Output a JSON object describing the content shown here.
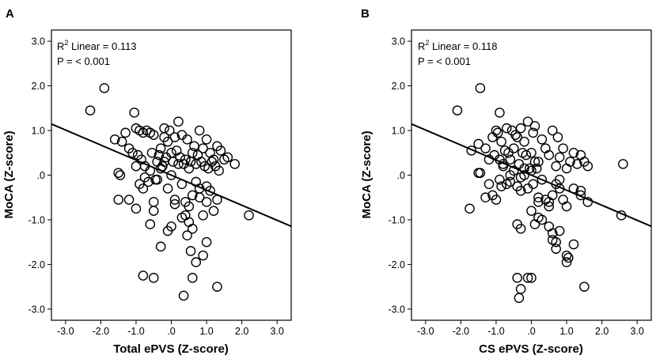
{
  "chart_data": [
    {
      "type": "scatter",
      "panel_label": "A",
      "xlabel": "Total ePVS (Z-score)",
      "ylabel": "MoCA (Z-score)",
      "xlim": [
        -3.4,
        3.4
      ],
      "ylim": [
        -3.25,
        3.25
      ],
      "xticks": [
        -3,
        -2,
        -1,
        0,
        1,
        2,
        3
      ],
      "yticks": [
        3,
        2,
        1,
        0,
        -1,
        -2,
        -3
      ],
      "xtick_labels": [
        "-3.0",
        "-2.0",
        "-1.0",
        ".0",
        "1.0",
        "2.0",
        "3.0"
      ],
      "ytick_labels": [
        "3.0",
        "2.0",
        "1.0",
        ".0",
        "-1.0",
        "-2.0",
        "-3.0"
      ],
      "annotation": {
        "r2_label": "R",
        "r2_sup": "2",
        "r2_text": " Linear = 0.113",
        "p_text": "P = < 0.001"
      },
      "fit_line": {
        "slope": -0.337,
        "intercept": 0.0
      },
      "x": [
        -2.3,
        -1.9,
        -1.6,
        -1.5,
        -1.4,
        -1.3,
        -1.2,
        -1.1,
        -1.05,
        -1.0,
        -0.95,
        -0.9,
        -0.85,
        -0.8,
        -0.75,
        -0.7,
        -0.65,
        -0.6,
        -0.55,
        -0.5,
        -0.45,
        -0.4,
        -0.35,
        -0.3,
        -0.25,
        -0.2,
        -0.15,
        -0.1,
        -0.05,
        0.0,
        0.05,
        0.1,
        0.15,
        0.2,
        0.25,
        0.3,
        0.35,
        0.4,
        0.45,
        0.5,
        0.55,
        0.6,
        0.65,
        0.7,
        0.75,
        0.8,
        0.85,
        0.9,
        0.95,
        1.0,
        1.05,
        1.1,
        1.15,
        1.2,
        1.25,
        1.3,
        1.35,
        1.4,
        1.5,
        1.6,
        1.8,
        -1.5,
        -1.45,
        -1.2,
        -1.0,
        -0.9,
        -0.8,
        -0.75,
        -0.6,
        -0.5,
        -0.4,
        -0.3,
        -0.2,
        -0.1,
        0.0,
        0.1,
        0.2,
        0.3,
        0.4,
        0.5,
        0.6,
        0.7,
        0.8,
        0.9,
        1.0,
        1.1,
        -0.6,
        -0.5,
        -0.1,
        0.1,
        0.4,
        0.5,
        0.6,
        0.8,
        1.0,
        1.2,
        1.3,
        -0.8,
        -0.5,
        -0.3,
        0.0,
        0.3,
        0.45,
        0.55,
        0.7,
        0.9,
        1.0,
        1.3,
        2.2,
        -1.0,
        -0.2,
        0.35,
        0.6
      ],
      "y": [
        1.45,
        1.95,
        0.8,
        -0.55,
        0.75,
        0.95,
        0.6,
        0.5,
        1.4,
        1.05,
        0.45,
        1.0,
        0.35,
        0.95,
        0.2,
        1.0,
        -0.15,
        0.95,
        0.5,
        0.9,
        -0.1,
        0.3,
        0.45,
        0.6,
        0.2,
        1.05,
        0.4,
        0.75,
        1.0,
        0.5,
        0.3,
        0.85,
        0.55,
        1.2,
        0.4,
        0.9,
        0.25,
        0.35,
        0.8,
        0.15,
        0.3,
        0.5,
        0.65,
        0.25,
        0.45,
        1.0,
        0.3,
        0.6,
        0.2,
        0.8,
        0.15,
        0.5,
        0.3,
        0.35,
        0.2,
        0.65,
        0.1,
        0.55,
        0.35,
        0.4,
        0.25,
        0.05,
        0.0,
        -0.55,
        -0.75,
        -0.2,
        -0.3,
        -0.05,
        0.1,
        -0.6,
        -0.1,
        0.15,
        0.3,
        -0.3,
        0.0,
        -0.55,
        0.25,
        -0.2,
        -0.6,
        -0.7,
        -0.45,
        -0.15,
        -0.5,
        -0.9,
        -0.25,
        -0.35,
        -1.1,
        -0.8,
        -1.25,
        -0.65,
        -0.9,
        -1.05,
        -1.2,
        -0.3,
        -0.6,
        -0.8,
        -0.55,
        -2.25,
        -2.3,
        -1.6,
        -1.15,
        -0.95,
        -1.35,
        -1.7,
        -1.95,
        -1.8,
        -1.5,
        -2.5,
        -0.9,
        0.2,
        0.85,
        -2.7,
        -2.3
      ]
    },
    {
      "type": "scatter",
      "panel_label": "B",
      "xlabel": "CS ePVS (Z-score)",
      "ylabel": "MoCA (Z-score)",
      "xlim": [
        -3.4,
        3.4
      ],
      "ylim": [
        -3.25,
        3.25
      ],
      "xticks": [
        -3,
        -2,
        -1,
        0,
        1,
        2,
        3
      ],
      "yticks": [
        3,
        2,
        1,
        0,
        -1,
        -2,
        -3
      ],
      "xtick_labels": [
        "-3.0",
        "-2.0",
        "-1.0",
        ".0",
        "1.0",
        "2.0",
        "3.0"
      ],
      "ytick_labels": [
        "3.0",
        "2.0",
        "1.0",
        ".0",
        "-1.0",
        "-2.0",
        "-3.0"
      ],
      "annotation": {
        "r2_label": "R",
        "r2_sup": "2",
        "r2_text": " Linear = 0.118",
        "p_text": "P = < 0.001"
      },
      "fit_line": {
        "slope": -0.337,
        "intercept": 0.0
      },
      "x": [
        -2.1,
        -1.45,
        -1.7,
        -1.5,
        -1.3,
        -1.2,
        -1.1,
        -1.05,
        -1.0,
        -0.95,
        -0.9,
        -0.85,
        -0.8,
        -0.75,
        -0.7,
        -0.65,
        -0.6,
        -0.55,
        -0.5,
        -0.45,
        -0.4,
        -0.35,
        -0.3,
        -0.25,
        -0.2,
        -0.15,
        -0.1,
        -0.05,
        0.0,
        0.05,
        0.1,
        0.2,
        0.3,
        0.4,
        0.5,
        0.6,
        0.7,
        0.75,
        0.8,
        0.9,
        1.0,
        1.1,
        1.2,
        1.3,
        1.4,
        1.5,
        1.6,
        2.6,
        -1.5,
        -1.45,
        -1.3,
        -1.0,
        -0.9,
        -0.8,
        -0.6,
        -0.5,
        -0.4,
        -0.3,
        -0.2,
        -0.1,
        0.0,
        0.05,
        0.1,
        0.15,
        0.2,
        0.3,
        0.5,
        0.6,
        0.7,
        0.8,
        0.9,
        1.2,
        1.4,
        1.6,
        -1.75,
        -1.2,
        -0.9,
        -0.6,
        -0.3,
        -0.2,
        0.0,
        0.2,
        0.3,
        0.5,
        0.8,
        1.0,
        1.4,
        2.55,
        -0.7,
        -0.4,
        -0.3,
        0.2,
        0.4,
        0.6,
        0.7,
        0.8,
        1.0,
        1.2,
        -0.4,
        -0.3,
        -0.1,
        0.0,
        0.1,
        0.6,
        0.7,
        1.0,
        1.05,
        1.5,
        -0.35,
        -0.85,
        -1.1,
        0.5
      ],
      "y": [
        1.45,
        1.95,
        0.55,
        0.7,
        0.6,
        0.35,
        0.85,
        0.45,
        1.0,
        0.95,
        1.4,
        0.75,
        0.25,
        0.55,
        1.05,
        0.5,
        0.35,
        1.0,
        0.6,
        0.9,
        0.85,
        0.25,
        1.05,
        0.5,
        0.75,
        0.45,
        1.2,
        0.15,
        0.5,
        0.95,
        1.1,
        0.3,
        0.8,
        0.6,
        0.45,
        1.0,
        0.2,
        0.85,
        0.4,
        0.6,
        0.15,
        0.3,
        0.5,
        0.25,
        0.45,
        0.3,
        0.2,
        0.25,
        0.05,
        0.05,
        -0.5,
        -0.55,
        0.35,
        0.2,
        -0.15,
        0.1,
        -0.25,
        -0.05,
        0.15,
        -0.3,
        0.1,
        -0.2,
        0.3,
        0.15,
        -0.5,
        -0.1,
        -0.6,
        -0.45,
        -0.2,
        -0.1,
        -0.55,
        -0.3,
        -0.45,
        -0.6,
        -0.75,
        -0.2,
        -0.1,
        0.0,
        -0.35,
        0.0,
        -0.8,
        -0.6,
        -1.0,
        -0.7,
        -0.3,
        -0.7,
        -0.35,
        -0.9,
        -0.2,
        -1.1,
        -1.2,
        -0.95,
        -0.55,
        -1.45,
        -1.65,
        -1.25,
        -1.8,
        -1.55,
        -2.3,
        -2.55,
        -2.3,
        -2.3,
        -1.1,
        -1.3,
        -1.5,
        -1.95,
        -1.85,
        -2.5,
        -2.75,
        -0.25,
        -0.45,
        -1.15
      ]
    }
  ]
}
